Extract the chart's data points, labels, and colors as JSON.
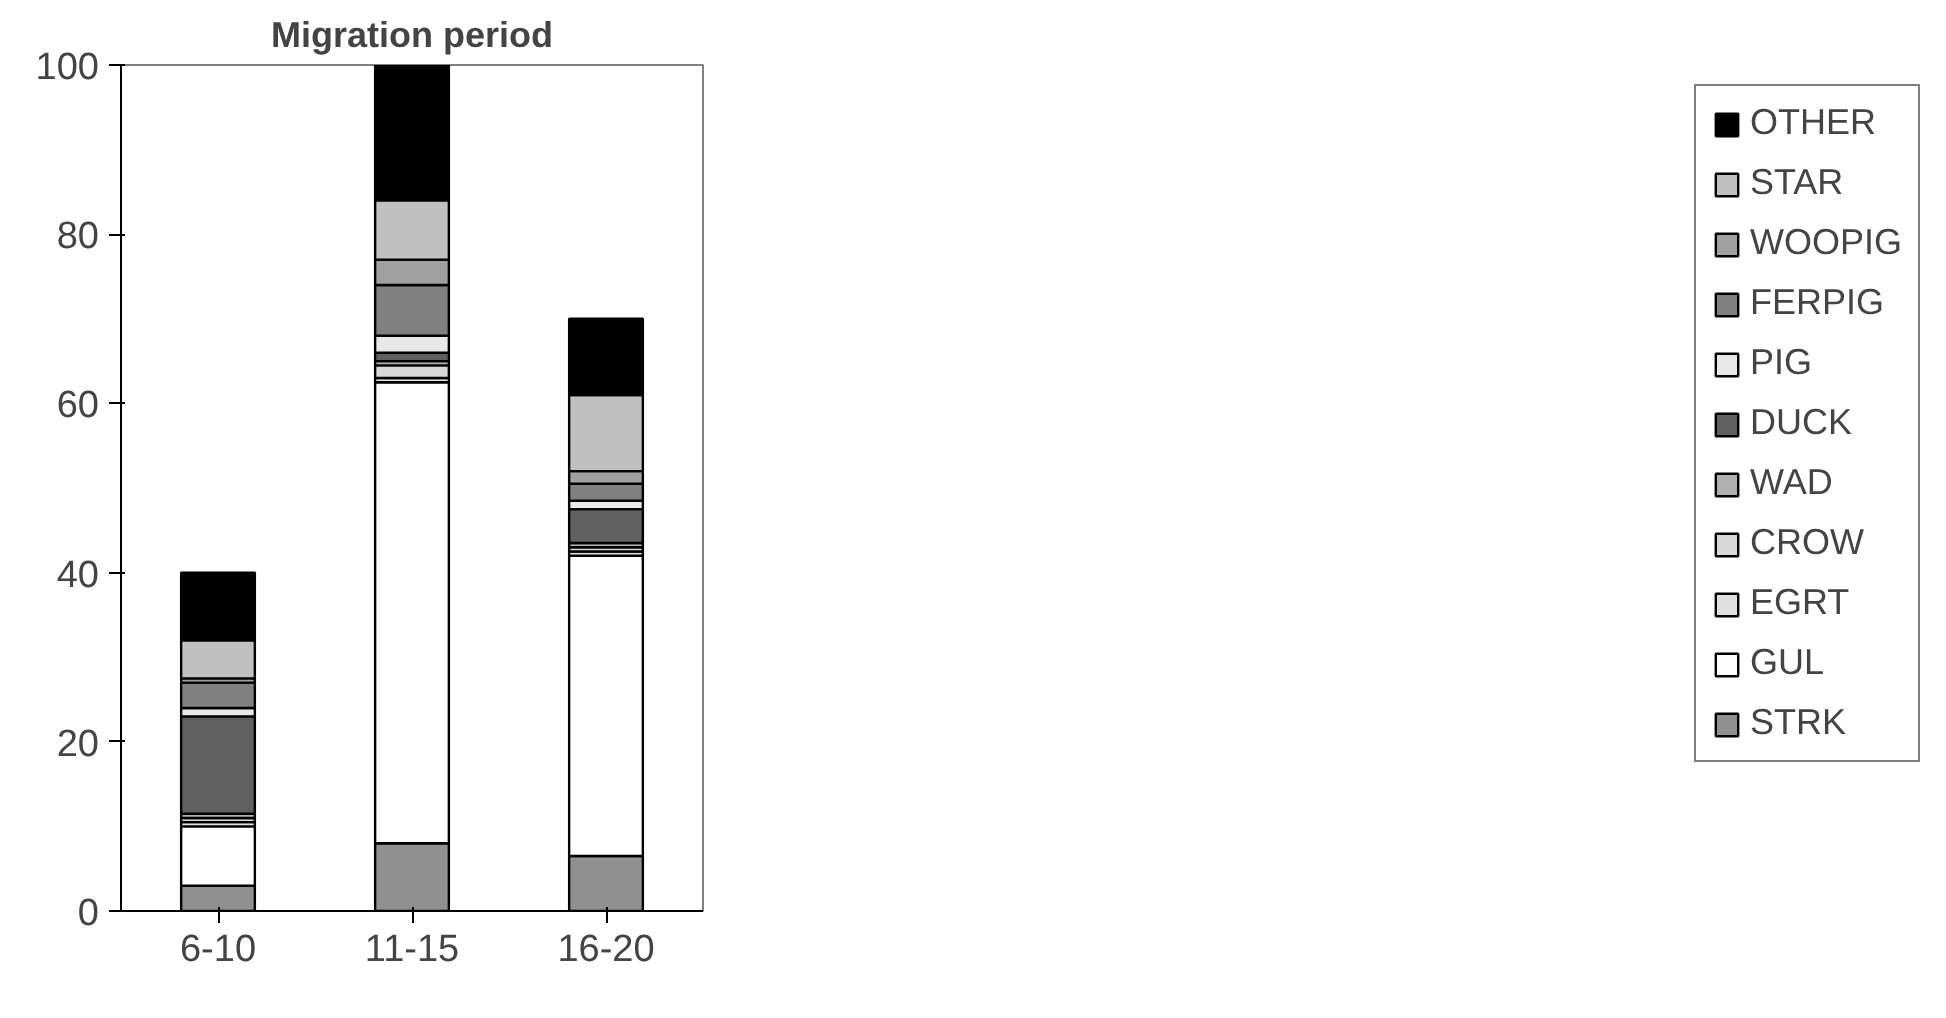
{
  "chart_data": {
    "type": "bar",
    "title": "Migration period",
    "stacked": true,
    "grid": false,
    "legend": "right",
    "categories": [
      "6-10",
      "11-15",
      "16-20"
    ],
    "ylim": [
      0,
      100
    ],
    "yticks": [
      0,
      20,
      40,
      60,
      80,
      100
    ],
    "series": [
      {
        "name": "STRK",
        "color": "#909090",
        "values": [
          3,
          8,
          6.5
        ]
      },
      {
        "name": "GUL",
        "color": "#ffffff",
        "values": [
          7,
          54.5,
          35.5
        ]
      },
      {
        "name": "EGRT",
        "color": "#e0e0e0",
        "values": [
          0.5,
          0.5,
          0.5
        ]
      },
      {
        "name": "CROW",
        "color": "#d8d8d8",
        "values": [
          0.5,
          1.5,
          0.5
        ]
      },
      {
        "name": "WAD",
        "color": "#b0b0b0",
        "values": [
          0.5,
          0.5,
          0.5
        ]
      },
      {
        "name": "DUCK",
        "color": "#606060",
        "values": [
          11.5,
          1,
          4
        ]
      },
      {
        "name": "PIG",
        "color": "#e8e8e8",
        "values": [
          1,
          2,
          1
        ]
      },
      {
        "name": "FERPIG",
        "color": "#808080",
        "values": [
          3,
          6,
          2
        ]
      },
      {
        "name": "WOOPIG",
        "color": "#a0a0a0",
        "values": [
          0.5,
          3,
          1.5
        ]
      },
      {
        "name": "STAR",
        "color": "#c0c0c0",
        "values": [
          4.5,
          7,
          9
        ]
      },
      {
        "name": "OTHER",
        "color": "#000000",
        "values": [
          8,
          16,
          9
        ]
      }
    ]
  }
}
